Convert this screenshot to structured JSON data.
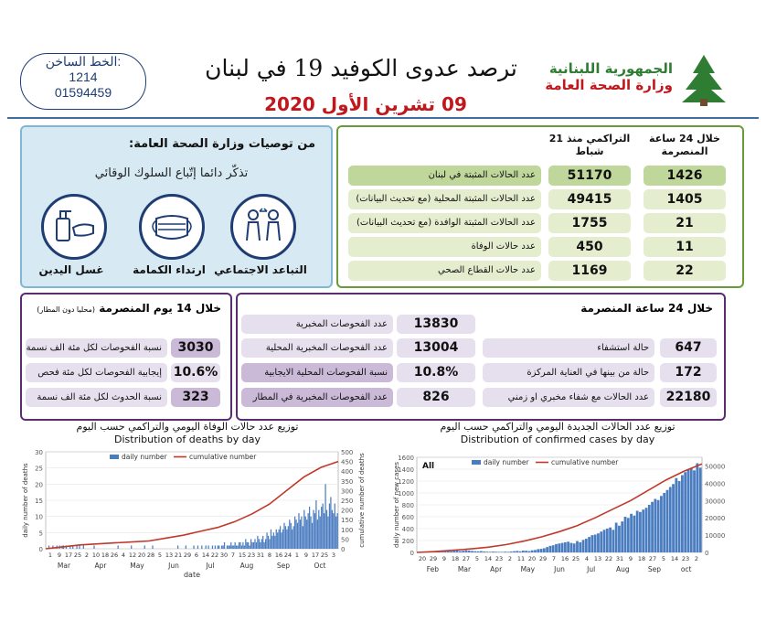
{
  "hotline": {
    "label": "الخط الساخن:",
    "line1": "1214",
    "line2": "01594459"
  },
  "header": {
    "title": "ترصد عدوى الكوفيد 19 في لبنان",
    "date": "09 تشرين الأول 2020",
    "gov_line1": "الجمهورية اللبنانية",
    "gov_line2": "وزارة الصحة العامة"
  },
  "recommendations": {
    "title": "من توصيات وزارة الصحة العامة:",
    "subtitle": "تذكّر دائما إتّباع السلوك الوقائي",
    "items": [
      {
        "label": "التباعد الاجتماعي",
        "icon": "social-distancing-icon"
      },
      {
        "label": "ارتداء الكمامة",
        "icon": "face-mask-icon"
      },
      {
        "label": "غسل اليدين",
        "icon": "hand-washing-icon"
      }
    ]
  },
  "stats": {
    "col_24h": "خلال 24 ساعة المنصرمة",
    "col_cum": "التراكمي منذ 21 شباط",
    "rows": [
      {
        "label": "عدد الحالات المثبتة في لبنان",
        "cum": "51170",
        "day": "1426"
      },
      {
        "label": "عدد الحالات المثبتة المحلية (مع تحديث البيانات)",
        "cum": "49415",
        "day": "1405"
      },
      {
        "label": "عدد الحالات المثبتة الوافدة (مع تحديث البيانات)",
        "cum": "1755",
        "day": "21"
      },
      {
        "label": "عدد حالات الوفاة",
        "cum": "450",
        "day": "11"
      },
      {
        "label": "عدد حالات القطاع الصحي",
        "cum": "1169",
        "day": "22"
      }
    ]
  },
  "box14": {
    "title": "خلال 14 يوم المنصرمة",
    "title_note": "(محليا دون المطار)",
    "rows": [
      {
        "label": "نسبة الفحوصات لكل مئة الف نسمة",
        "value": "3030"
      },
      {
        "label": "إيجابية الفحوصات لكل مئة فحص",
        "value": "10.6%"
      },
      {
        "label": "نسبة الحدوث لكل مئة الف نسمة",
        "value": "323"
      }
    ]
  },
  "box24": {
    "title": "خلال 24 ساعة المنصرمة",
    "left_rows": [
      {
        "label": "عدد الفحوصات المخبرية",
        "value": "13830"
      },
      {
        "label": "عدد الفحوصات المخبرية المحلية",
        "value": "13004"
      },
      {
        "label": "نسبة الفحوصات المحلية الايجابية",
        "value": "10.8%"
      },
      {
        "label": "عدد الفحوصات المخبرية في المطار",
        "value": "826"
      }
    ],
    "right_rows": [
      {
        "label": "حالة استشفاء",
        "value": "647"
      },
      {
        "label": "حالة من بينها في العناية المركزة",
        "value": "172"
      },
      {
        "label": "عدد الحالات مع شفاء مخبري او زمني",
        "value": "22180"
      }
    ]
  },
  "colors": {
    "bar": "#4a7cc0",
    "line": "#c0392b",
    "green_panel": "#6a9a3a",
    "purple_panel": "#5b2c6f",
    "title_red": "#c0181c"
  },
  "chart_data": [
    {
      "type": "bar",
      "title": "Distribution of deaths by day",
      "title_ar": "توزيع عدد حالات الوفاة اليومي والتراكمي حسب اليوم",
      "xlabel": "date",
      "ylabel": "daily number of deaths",
      "y2label": "cumulative number of deaths",
      "ylim": [
        0,
        30
      ],
      "y2lim": [
        0,
        500
      ],
      "yticks": [
        0,
        5,
        10,
        15,
        20,
        25,
        30
      ],
      "y2ticks": [
        0,
        50,
        100,
        150,
        200,
        250,
        300,
        350,
        400,
        450,
        500
      ],
      "legend": [
        "daily number",
        "cumulative number"
      ],
      "legend_position": "top",
      "months": [
        "Mar",
        "Apr",
        "May",
        "Jun",
        "Jul",
        "Aug",
        "Sep",
        "Oct"
      ],
      "day_ticks": [
        "1",
        "9",
        "17",
        "25",
        "2",
        "10",
        "18",
        "26",
        "4",
        "12",
        "20",
        "28",
        "5",
        "13",
        "21",
        "29",
        "6",
        "14",
        "22",
        "30",
        "7",
        "15",
        "23",
        "31",
        "8",
        "16",
        "24",
        "1",
        "9",
        "17",
        "25",
        "3"
      ],
      "daily": [
        0,
        0,
        1,
        0,
        0,
        1,
        0,
        0,
        1,
        0,
        1,
        0,
        1,
        1,
        0,
        1,
        0,
        0,
        1,
        0,
        1,
        0,
        0,
        1,
        0,
        1,
        0,
        0,
        1,
        0,
        0,
        0,
        0,
        0,
        0,
        0,
        1,
        0,
        0,
        0,
        0,
        0,
        0,
        0,
        0,
        0,
        0,
        0,
        0,
        0,
        0,
        0,
        0,
        0,
        1,
        0,
        0,
        0,
        0,
        0,
        0,
        0,
        0,
        0,
        1,
        0,
        0,
        0,
        0,
        0,
        0,
        0,
        0,
        0,
        1,
        0,
        0,
        0,
        0,
        0,
        1,
        0,
        0,
        0,
        0,
        0,
        0,
        0,
        0,
        0,
        0,
        0,
        0,
        0,
        0,
        0,
        0,
        0,
        0,
        1,
        0,
        0,
        0,
        0,
        0,
        1,
        0,
        0,
        0,
        0,
        0,
        1,
        0,
        0,
        1,
        0,
        0,
        1,
        0,
        0,
        1,
        0,
        1,
        0,
        0,
        1,
        0,
        1,
        0,
        1,
        1,
        0,
        1,
        1,
        2,
        0,
        1,
        1,
        1,
        2,
        1,
        1,
        2,
        1,
        1,
        2,
        2,
        1,
        2,
        1,
        3,
        2,
        2,
        1,
        3,
        2,
        2,
        3,
        2,
        4,
        3,
        2,
        3,
        4,
        2,
        3,
        5,
        4,
        3,
        6,
        4,
        5,
        4,
        6,
        5,
        6,
        7,
        5,
        6,
        8,
        7,
        6,
        7,
        9,
        8,
        6,
        7,
        10,
        9,
        8,
        11,
        9,
        10,
        7,
        12,
        10,
        9,
        11,
        13,
        10,
        8,
        12,
        11,
        15,
        9,
        12,
        10,
        13,
        14,
        11,
        20,
        12,
        10,
        14,
        16,
        12,
        11,
        14,
        10,
        11
      ],
      "cumulative": [
        0,
        10,
        20,
        25,
        30,
        35,
        40,
        55,
        70,
        90,
        110,
        140,
        180,
        230,
        300,
        370,
        420,
        450
      ]
    },
    {
      "type": "bar",
      "title": "Distribution of confirmed cases by day",
      "title_ar": "توزيع عدد الحالات الجديدة اليومي والتراكمي حسب اليوم",
      "label": "All",
      "ylabel": "daily number of new cases",
      "ylim": [
        0,
        1600
      ],
      "y2lim": [
        0,
        55000
      ],
      "yticks": [
        0,
        200,
        400,
        600,
        800,
        1000,
        1200,
        1400,
        1600
      ],
      "y2ticks": [
        0,
        10000,
        20000,
        30000,
        40000,
        50000
      ],
      "legend": [
        "daily number",
        "cumulative number"
      ],
      "legend_position": "top",
      "months": [
        "Feb",
        "Mar",
        "Apr",
        "May",
        "Jun",
        "Jul",
        "Aug",
        "Sep",
        "oct"
      ],
      "day_ticks": [
        "20",
        "29",
        "9",
        "18",
        "27",
        "5",
        "14",
        "23",
        "2",
        "11",
        "20",
        "29",
        "7",
        "16",
        "25",
        "4",
        "13",
        "22",
        "31",
        "9",
        "18",
        "27",
        "5",
        "14",
        "23",
        "2"
      ],
      "daily": [
        1,
        2,
        2,
        3,
        5,
        6,
        8,
        10,
        12,
        15,
        20,
        18,
        25,
        30,
        22,
        28,
        35,
        30,
        25,
        20,
        18,
        22,
        15,
        12,
        10,
        14,
        11,
        9,
        8,
        12,
        10,
        15,
        20,
        25,
        18,
        30,
        28,
        22,
        35,
        40,
        55,
        60,
        70,
        90,
        110,
        120,
        140,
        150,
        160,
        170,
        180,
        160,
        150,
        190,
        170,
        210,
        230,
        260,
        290,
        300,
        320,
        350,
        380,
        400,
        420,
        380,
        500,
        450,
        520,
        600,
        580,
        650,
        620,
        700,
        680,
        720,
        750,
        800,
        850,
        900,
        880,
        950,
        1000,
        1050,
        1100,
        1150,
        1250,
        1200,
        1300,
        1350,
        1400,
        1420,
        1380,
        1500,
        1426
      ],
      "cumulative": [
        0,
        500,
        1200,
        2000,
        3000,
        4500,
        6500,
        9000,
        12000,
        15500,
        20000,
        25000,
        30000,
        36000,
        42000,
        47000,
        51170
      ]
    }
  ]
}
